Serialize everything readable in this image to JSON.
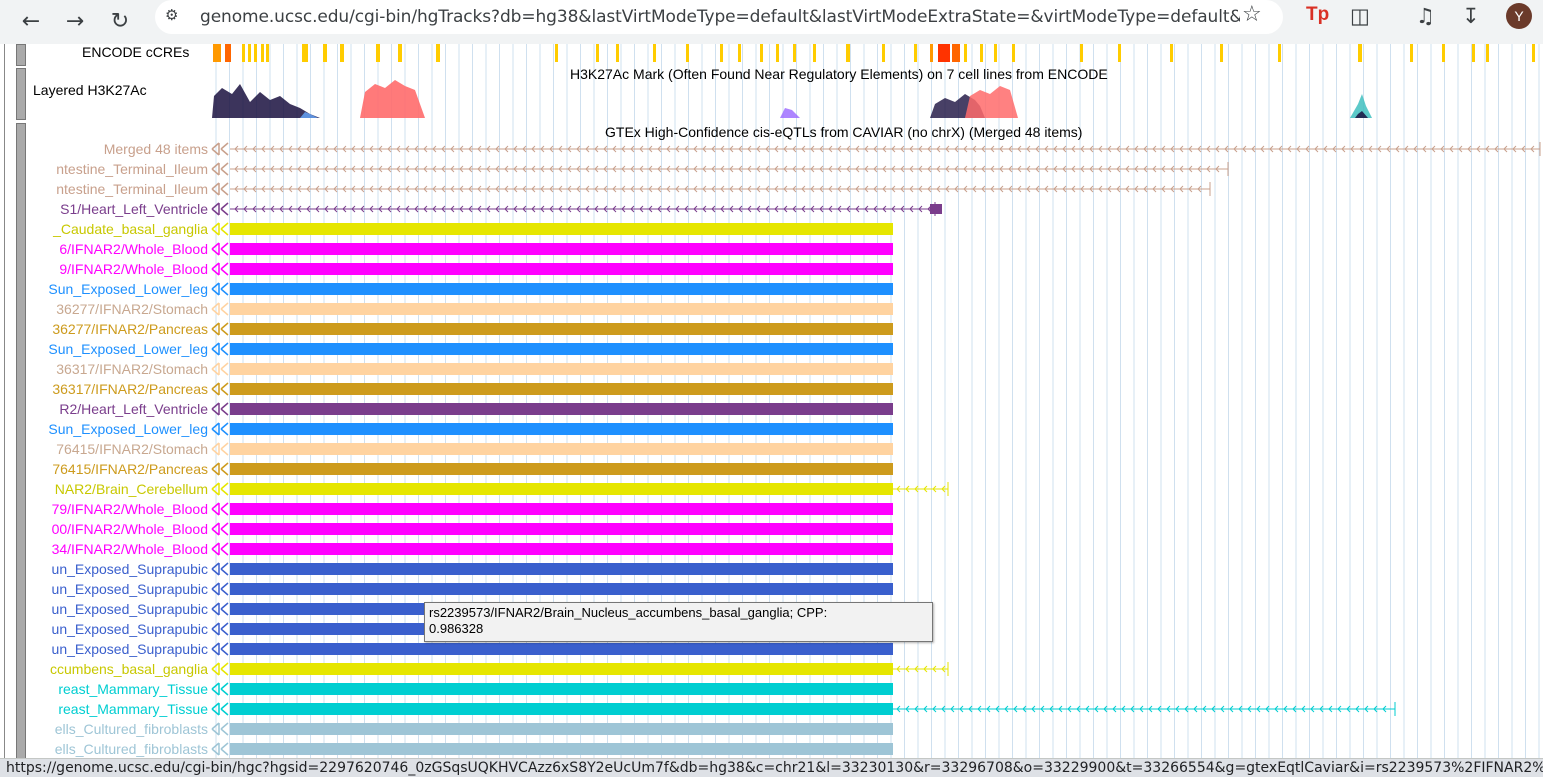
{
  "browser": {
    "url": "genome.ucsc.edu/cgi-bin/hgTracks?db=hg38&lastVirtModeType=default&lastVirtModeExtraState=&virtModeType=default&virtMo...",
    "avatar_letter": "Y",
    "status_url": "https://genome.ucsc.edu/cgi-bin/hgc?hgsid=2297620746_0zGSqsUQKHVCAzz6xS8Y2eUcUm7f&db=hg38&c=chr21&l=33230130&r=33296708&o=33229900&t=33266554&g=gtexEqtlCaviar&i=rs2239573%2FIFNAR2%2FBrain_Nu..."
  },
  "tracks": {
    "encode_label": "ENCODE cCREs",
    "h3k27ac_label": "Layered H3K27Ac",
    "h3k27ac_title": "H3K27Ac Mark (Often Found Near Regulatory Elements) on 7 cell lines from ENCODE",
    "gtex_title": "GTEx High-Confidence cis-eQTLs from CAVIAR (no chrX) (Merged 48 items)"
  },
  "eqtl_rows": [
    {
      "label": "Merged 48 items",
      "color": "#c8a08c",
      "type": "merged"
    },
    {
      "label": "ntestine_Terminal_Ileum",
      "color": "#c8a08c",
      "type": "long"
    },
    {
      "label": "ntestine_Terminal_Ileum",
      "color": "#c8a08c",
      "type": "long"
    },
    {
      "label": "S1/Heart_Left_Ventricle",
      "color": "#7a3d8c",
      "type": "heart"
    },
    {
      "label": "_Caudate_basal_ganglia",
      "color": "#e6e600",
      "type": "bar"
    },
    {
      "label": "6/IFNAR2/Whole_Blood",
      "color": "#ff00ff",
      "type": "bar"
    },
    {
      "label": "9/IFNAR2/Whole_Blood",
      "color": "#ff00ff",
      "type": "bar"
    },
    {
      "label": "Sun_Exposed_Lower_leg",
      "color": "#1e90ff",
      "type": "bar"
    },
    {
      "label": "36277/IFNAR2/Stomach",
      "color": "#ffd3a0",
      "type": "bar"
    },
    {
      "label": "36277/IFNAR2/Pancreas",
      "color": "#cd9b1d",
      "type": "bar"
    },
    {
      "label": "Sun_Exposed_Lower_leg",
      "color": "#1e90ff",
      "type": "bar"
    },
    {
      "label": "36317/IFNAR2/Stomach",
      "color": "#ffd3a0",
      "type": "bar"
    },
    {
      "label": "36317/IFNAR2/Pancreas",
      "color": "#cd9b1d",
      "type": "bar"
    },
    {
      "label": "R2/Heart_Left_Ventricle",
      "color": "#7a3d8c",
      "type": "bar"
    },
    {
      "label": "Sun_Exposed_Lower_leg",
      "color": "#1e90ff",
      "type": "bar"
    },
    {
      "label": "76415/IFNAR2/Stomach",
      "color": "#ffd3a0",
      "type": "bar"
    },
    {
      "label": "76415/IFNAR2/Pancreas",
      "color": "#cd9b1d",
      "type": "bar"
    },
    {
      "label": "NAR2/Brain_Cerebellum",
      "color": "#e6e600",
      "type": "barext"
    },
    {
      "label": "79/IFNAR2/Whole_Blood",
      "color": "#ff00ff",
      "type": "bar"
    },
    {
      "label": "00/IFNAR2/Whole_Blood",
      "color": "#ff00ff",
      "type": "bar"
    },
    {
      "label": "34/IFNAR2/Whole_Blood",
      "color": "#ff00ff",
      "type": "bar"
    },
    {
      "label": "un_Exposed_Suprapubic",
      "color": "#3a5fcd",
      "type": "bar"
    },
    {
      "label": "un_Exposed_Suprapubic",
      "color": "#3a5fcd",
      "type": "bar"
    },
    {
      "label": "un_Exposed_Suprapubic",
      "color": "#3a5fcd",
      "type": "bar"
    },
    {
      "label": "un_Exposed_Suprapubic",
      "color": "#3a5fcd",
      "type": "bar"
    },
    {
      "label": "un_Exposed_Suprapubic",
      "color": "#3a5fcd",
      "type": "bar"
    },
    {
      "label": "ccumbens_basal_ganglia",
      "color": "#e6e600",
      "type": "barext"
    },
    {
      "label": "reast_Mammary_Tissue",
      "color": "#00ced1",
      "type": "bar"
    },
    {
      "label": "reast_Mammary_Tissue",
      "color": "#00ced1",
      "type": "barlong"
    },
    {
      "label": "ells_Cultured_fibroblasts",
      "color": "#9ec5d6",
      "type": "bar"
    },
    {
      "label": "ells_Cultured_fibroblasts",
      "color": "#9ec5d6",
      "type": "bar"
    }
  ],
  "tooltip": {
    "line1": "rs2239573/IFNAR2/Brain_Nucleus_accumbens_basal_ganglia; CPP:",
    "line2": "0.986328"
  }
}
